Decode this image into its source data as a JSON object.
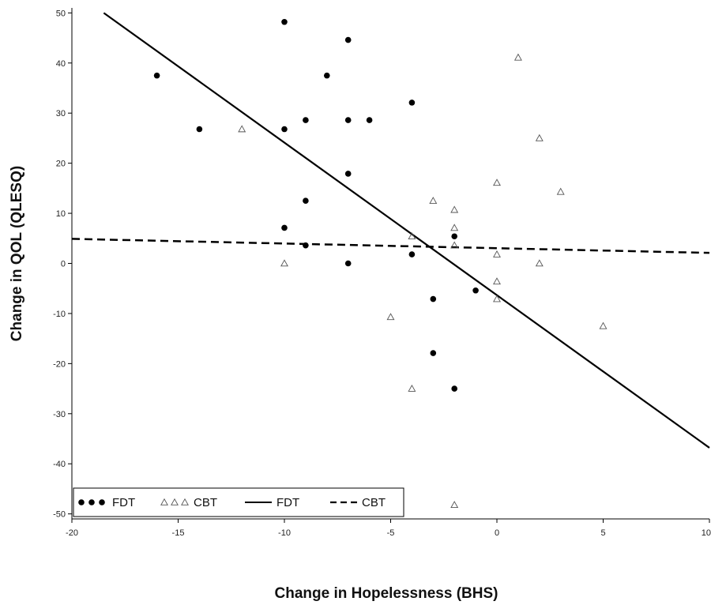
{
  "chart_data": {
    "type": "scatter",
    "title": "",
    "xlabel": "Change in Hopelessness (BHS)",
    "ylabel": "Change in QOL (QLESQ)",
    "xlim": [
      -20,
      10
    ],
    "ylim": [
      -51,
      51
    ],
    "xticks": [
      -20,
      -15,
      -10,
      -5,
      0,
      5,
      10
    ],
    "xtick_labels": [
      "-20",
      "-15",
      "-10",
      "-5",
      "0",
      "5",
      "10"
    ],
    "yticks": [
      -50,
      -40,
      -30,
      -20,
      -10,
      0,
      10,
      20,
      30,
      40,
      50
    ],
    "ytick_labels": [
      "-50",
      "-40",
      "-30",
      "-20",
      "-10",
      "0",
      "10",
      "20",
      "30",
      "40",
      "50"
    ],
    "grid": false,
    "legend_position": "bottom-left",
    "series": [
      {
        "name": "FDT",
        "kind": "points",
        "marker": "filled-circle",
        "points": [
          [
            -16,
            37.5
          ],
          [
            -14,
            26.8
          ],
          [
            -10,
            48.2
          ],
          [
            -10,
            26.8
          ],
          [
            -10,
            7.1
          ],
          [
            -9,
            28.6
          ],
          [
            -9,
            12.5
          ],
          [
            -9,
            3.6
          ],
          [
            -8,
            37.5
          ],
          [
            -7,
            44.6
          ],
          [
            -7,
            28.6
          ],
          [
            -7,
            17.9
          ],
          [
            -7,
            0
          ],
          [
            -6,
            28.6
          ],
          [
            -4,
            32.1
          ],
          [
            -4,
            1.8
          ],
          [
            -3,
            -7.1
          ],
          [
            -3,
            -17.9
          ],
          [
            -2,
            5.4
          ],
          [
            -2,
            -25
          ],
          [
            -1,
            -5.4
          ]
        ]
      },
      {
        "name": "CBT",
        "kind": "points",
        "marker": "open-triangle",
        "points": [
          [
            -12,
            26.8
          ],
          [
            -10,
            0
          ],
          [
            -5,
            -10.7
          ],
          [
            -4,
            5.4
          ],
          [
            -4,
            -25
          ],
          [
            -3,
            12.5
          ],
          [
            -2,
            10.7
          ],
          [
            -2,
            7.1
          ],
          [
            -2,
            3.6
          ],
          [
            -2,
            -48.2
          ],
          [
            0,
            16.1
          ],
          [
            0,
            1.8
          ],
          [
            0,
            -3.6
          ],
          [
            0,
            -7.1
          ],
          [
            1,
            41.1
          ],
          [
            2,
            25
          ],
          [
            2,
            0
          ],
          [
            3,
            14.3
          ],
          [
            5,
            -12.5
          ]
        ]
      },
      {
        "name": "FDT",
        "kind": "line",
        "style": "solid",
        "points": [
          [
            -18.5,
            50
          ],
          [
            10,
            -36.8
          ]
        ]
      },
      {
        "name": "CBT",
        "kind": "line",
        "style": "dashed",
        "points": [
          [
            -20,
            4.9
          ],
          [
            10,
            2.1
          ]
        ]
      }
    ],
    "legend_entries": [
      "FDT",
      "CBT",
      "FDT",
      "CBT"
    ]
  }
}
